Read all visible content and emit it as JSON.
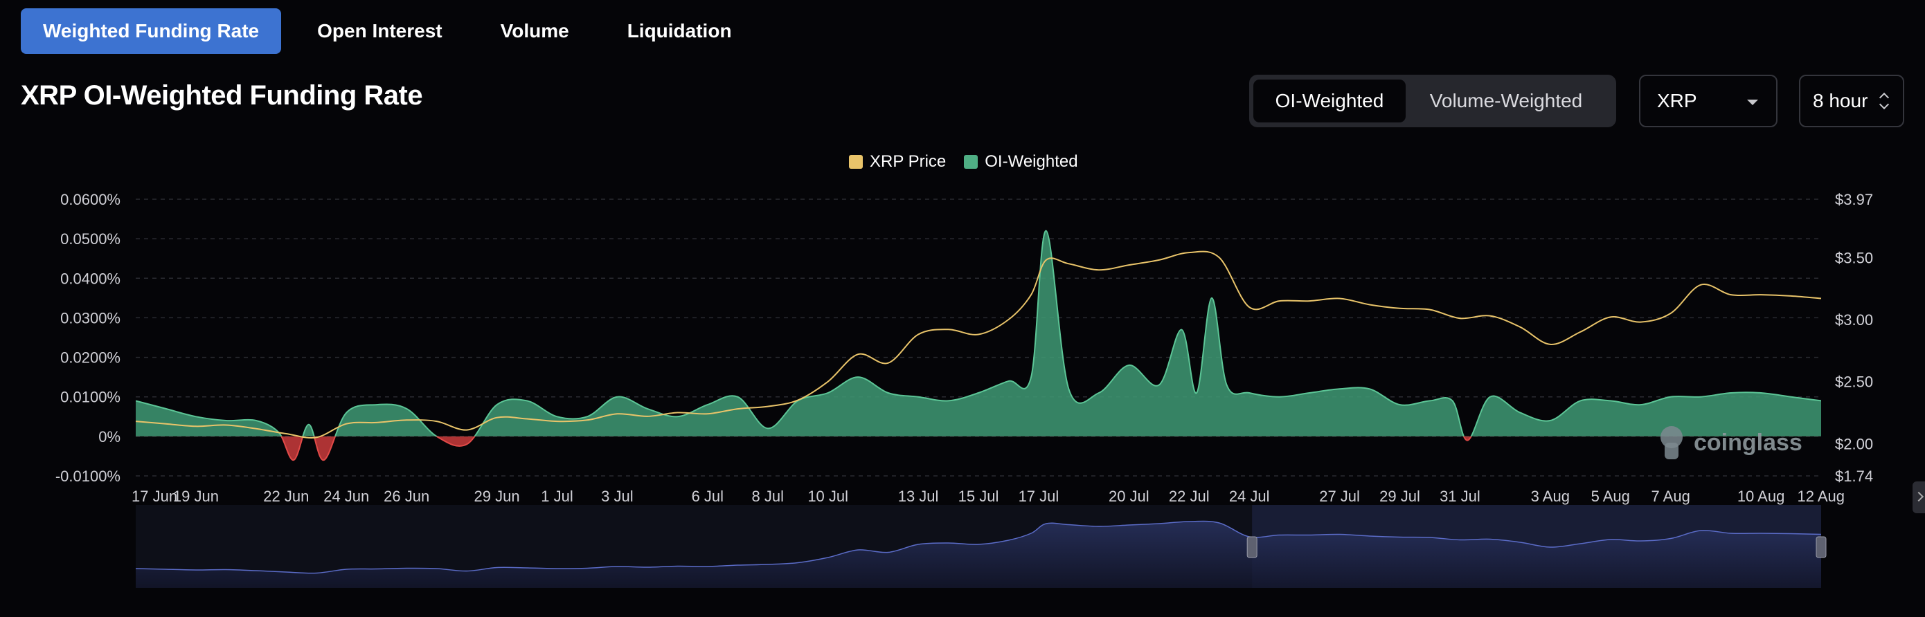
{
  "tabs": [
    "Weighted Funding Rate",
    "Open Interest",
    "Volume",
    "Liquidation"
  ],
  "page_title": "XRP OI-Weighted Funding Rate",
  "segmented": {
    "options": [
      "OI-Weighted",
      "Volume-Weighted"
    ],
    "selected": "OI-Weighted"
  },
  "coin_select": {
    "value": "XRP"
  },
  "interval_select": {
    "value": "8 hour"
  },
  "watermark": "coinglass",
  "colors": {
    "price_line": "#e9c46a",
    "positive": "#4fae84",
    "negative": "#d9403f",
    "accent": "#3d73d1"
  },
  "chart_data": {
    "type": "area",
    "title": "",
    "legend": [
      {
        "name": "XRP Price",
        "color": "#e9c46a"
      },
      {
        "name": "OI-Weighted",
        "color": "#4fae84"
      }
    ],
    "legend_position": "top-center",
    "grid": true,
    "x_tick_labels": [
      "17 Jun",
      "19 Jun",
      "22 Jun",
      "24 Jun",
      "26 Jun",
      "29 Jun",
      "1 Jul",
      "3 Jul",
      "6 Jul",
      "8 Jul",
      "10 Jul",
      "13 Jul",
      "15 Jul",
      "17 Jul",
      "20 Jul",
      "22 Jul",
      "24 Jul",
      "27 Jul",
      "29 Jul",
      "31 Jul",
      "3 Aug",
      "5 Aug",
      "7 Aug",
      "10 Aug",
      "12 Aug"
    ],
    "y_left": {
      "tick_labels": [
        "-0.0100%",
        "0%",
        "0.0100%",
        "0.0200%",
        "0.0300%",
        "0.0400%",
        "0.0500%",
        "0.0600%"
      ],
      "ylim": [
        -0.01,
        0.06
      ],
      "unit": "%"
    },
    "y_right": {
      "tick_labels": [
        "$1.74",
        "$2.00",
        "$2.50",
        "$3.00",
        "$3.50",
        "$3.97"
      ],
      "ylim": [
        1.74,
        3.97
      ]
    },
    "series": [
      {
        "name": "OI-Weighted",
        "axis": "left",
        "unit": "%",
        "x": [
          "17 Jun",
          "18 Jun",
          "19 Jun",
          "20 Jun",
          "21 Jun",
          "22 Jun",
          "22 Jun",
          "23 Jun",
          "23 Jun",
          "24 Jun",
          "25 Jun",
          "26 Jun",
          "27 Jun",
          "28 Jun",
          "29 Jun",
          "30 Jun",
          "1 Jul",
          "2 Jul",
          "3 Jul",
          "4 Jul",
          "5 Jul",
          "6 Jul",
          "7 Jul",
          "8 Jul",
          "9 Jul",
          "10 Jul",
          "11 Jul",
          "12 Jul",
          "13 Jul",
          "14 Jul",
          "15 Jul",
          "16 Jul",
          "17 Jul",
          "17 Jul",
          "18 Jul",
          "19 Jul",
          "20 Jul",
          "21 Jul",
          "22 Jul",
          "22 Jul",
          "23 Jul",
          "23 Jul",
          "24 Jul",
          "25 Jul",
          "26 Jul",
          "27 Jul",
          "28 Jul",
          "29 Jul",
          "30 Jul",
          "31 Jul",
          "31 Jul",
          "1 Aug",
          "2 Aug",
          "3 Aug",
          "4 Aug",
          "5 Aug",
          "6 Aug",
          "7 Aug",
          "8 Aug",
          "9 Aug",
          "10 Aug",
          "11 Aug",
          "12 Aug"
        ],
        "values": [
          0.009,
          0.007,
          0.005,
          0.004,
          0.004,
          0.001,
          -0.006,
          0.003,
          -0.006,
          0.006,
          0.008,
          0.007,
          0.0,
          -0.002,
          0.008,
          0.009,
          0.005,
          0.005,
          0.01,
          0.007,
          0.005,
          0.008,
          0.01,
          0.002,
          0.009,
          0.011,
          0.015,
          0.011,
          0.01,
          0.009,
          0.011,
          0.014,
          0.015,
          0.052,
          0.012,
          0.011,
          0.018,
          0.013,
          0.027,
          0.011,
          0.035,
          0.013,
          0.011,
          0.01,
          0.011,
          0.012,
          0.012,
          0.008,
          0.009,
          0.009,
          -0.001,
          0.01,
          0.006,
          0.004,
          0.009,
          0.009,
          0.008,
          0.01,
          0.01,
          0.011,
          0.011,
          0.01,
          0.009
        ]
      },
      {
        "name": "XRP Price",
        "axis": "right",
        "unit": "$",
        "x": [
          "17 Jun",
          "18 Jun",
          "19 Jun",
          "20 Jun",
          "21 Jun",
          "22 Jun",
          "23 Jun",
          "24 Jun",
          "25 Jun",
          "26 Jun",
          "27 Jun",
          "28 Jun",
          "29 Jun",
          "30 Jun",
          "1 Jul",
          "2 Jul",
          "3 Jul",
          "4 Jul",
          "5 Jul",
          "6 Jul",
          "7 Jul",
          "8 Jul",
          "9 Jul",
          "10 Jul",
          "11 Jul",
          "12 Jul",
          "13 Jul",
          "14 Jul",
          "15 Jul",
          "16 Jul",
          "17 Jul",
          "17 Jul",
          "18 Jul",
          "19 Jul",
          "20 Jul",
          "21 Jul",
          "22 Jul",
          "23 Jul",
          "24 Jul",
          "25 Jul",
          "26 Jul",
          "27 Jul",
          "28 Jul",
          "29 Jul",
          "30 Jul",
          "31 Jul",
          "1 Aug",
          "2 Aug",
          "3 Aug",
          "4 Aug",
          "5 Aug",
          "6 Aug",
          "7 Aug",
          "8 Aug",
          "9 Aug",
          "10 Aug",
          "11 Aug",
          "12 Aug"
        ],
        "values": [
          2.18,
          2.16,
          2.14,
          2.15,
          2.12,
          2.08,
          2.05,
          2.16,
          2.17,
          2.19,
          2.18,
          2.11,
          2.21,
          2.2,
          2.18,
          2.19,
          2.24,
          2.22,
          2.25,
          2.24,
          2.28,
          2.3,
          2.35,
          2.5,
          2.72,
          2.65,
          2.88,
          2.92,
          2.88,
          3.0,
          3.2,
          3.48,
          3.45,
          3.4,
          3.44,
          3.48,
          3.54,
          3.5,
          3.1,
          3.15,
          3.15,
          3.17,
          3.12,
          3.09,
          3.08,
          3.01,
          3.03,
          2.94,
          2.8,
          2.9,
          3.02,
          2.98,
          3.05,
          3.28,
          3.2,
          3.2,
          3.19,
          3.17
        ]
      }
    ]
  }
}
